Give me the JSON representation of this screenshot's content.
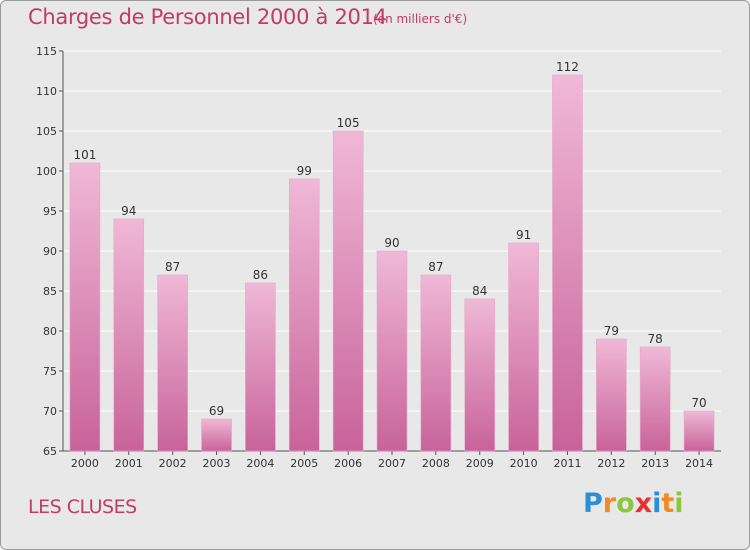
{
  "header": {
    "title": "Charges de Personnel 2000 à 2014",
    "subtitle": "(en milliers d'€)"
  },
  "footer": {
    "town": "LES CLUSES",
    "logo_letters": [
      "P",
      "r",
      "o",
      "x",
      "i",
      "t",
      "i"
    ],
    "logo_colors": [
      "#2a8fd6",
      "#f08a24",
      "#8cc63f",
      "#e8312f",
      "#2a8fd6",
      "#f08a24",
      "#8cc63f"
    ]
  },
  "colors": {
    "bar_light": "#f0b8d6",
    "bar_dark": "#c8639a",
    "grid": "#ffffff",
    "axis_text": "#333333",
    "title": "#c03a6a"
  },
  "chart_data": {
    "type": "bar",
    "categories": [
      "2000",
      "2001",
      "2002",
      "2003",
      "2004",
      "2005",
      "2006",
      "2007",
      "2008",
      "2009",
      "2010",
      "2011",
      "2012",
      "2013",
      "2014"
    ],
    "values": [
      101,
      94,
      87,
      69,
      86,
      99,
      105,
      90,
      87,
      84,
      91,
      112,
      79,
      78,
      70
    ],
    "title": "Charges de Personnel 2000 à 2014",
    "subtitle": "(en milliers d'€)",
    "xlabel": "",
    "ylabel": "",
    "ylim": [
      65,
      115
    ],
    "yticks": [
      65,
      70,
      75,
      80,
      85,
      90,
      95,
      100,
      105,
      110,
      115
    ],
    "grid": true
  }
}
